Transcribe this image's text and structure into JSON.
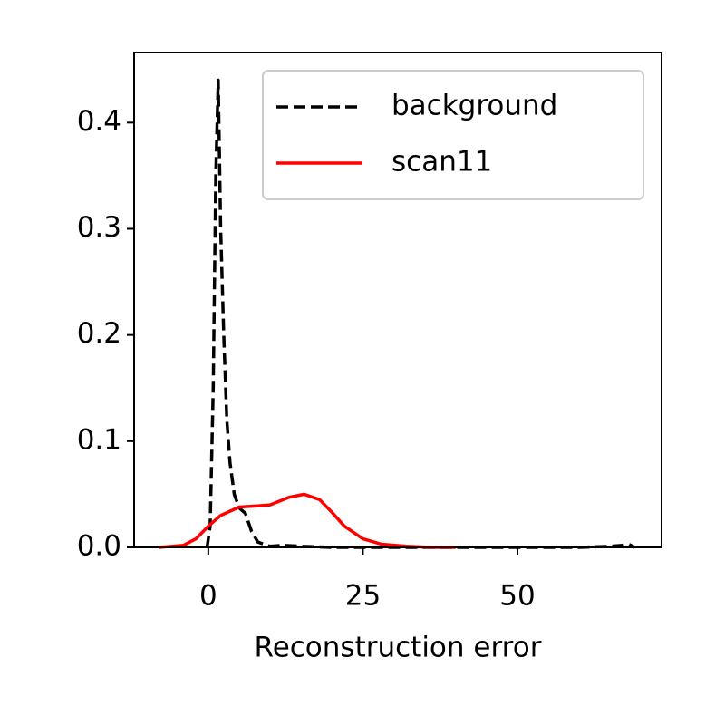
{
  "chart_data": {
    "type": "line",
    "x_label": "Reconstruction error",
    "xlim": [
      -12,
      73.3
    ],
    "ylim": [
      0,
      0.466
    ],
    "xticks": [
      0,
      25,
      50
    ],
    "yticks": [
      {
        "value": 0,
        "label": "0.0"
      },
      0.1,
      0.2,
      0.3,
      0.4
    ],
    "legend": "upper right",
    "series": [
      {
        "name": "background",
        "color": "#000000",
        "dashed": true,
        "x": [
          -0.2,
          0.3,
          0.8,
          1.2,
          1.6,
          2.0,
          2.5,
          3.0,
          3.5,
          4.2,
          5,
          6,
          7,
          8,
          9,
          10,
          12,
          15,
          20,
          30,
          40,
          50,
          60,
          65,
          67,
          68,
          69
        ],
        "values": [
          0,
          0.02,
          0.15,
          0.35,
          0.44,
          0.3,
          0.2,
          0.12,
          0.08,
          0.05,
          0.037,
          0.032,
          0.015,
          0.005,
          0.003,
          0.001,
          0.002,
          0.001,
          0,
          0,
          0,
          0,
          0,
          0.001,
          0.002,
          0.003,
          0
        ]
      },
      {
        "name": "scan11",
        "color": "#ff0000",
        "dashed": false,
        "x": [
          -8,
          -4,
          -2,
          0,
          2,
          5,
          8,
          10,
          13,
          15.5,
          18,
          20,
          22,
          25,
          28,
          32,
          36,
          40
        ],
        "values": [
          0,
          0.002,
          0.008,
          0.02,
          0.03,
          0.038,
          0.039,
          0.04,
          0.047,
          0.05,
          0.045,
          0.033,
          0.02,
          0.008,
          0.003,
          0.001,
          0,
          0
        ]
      }
    ]
  }
}
